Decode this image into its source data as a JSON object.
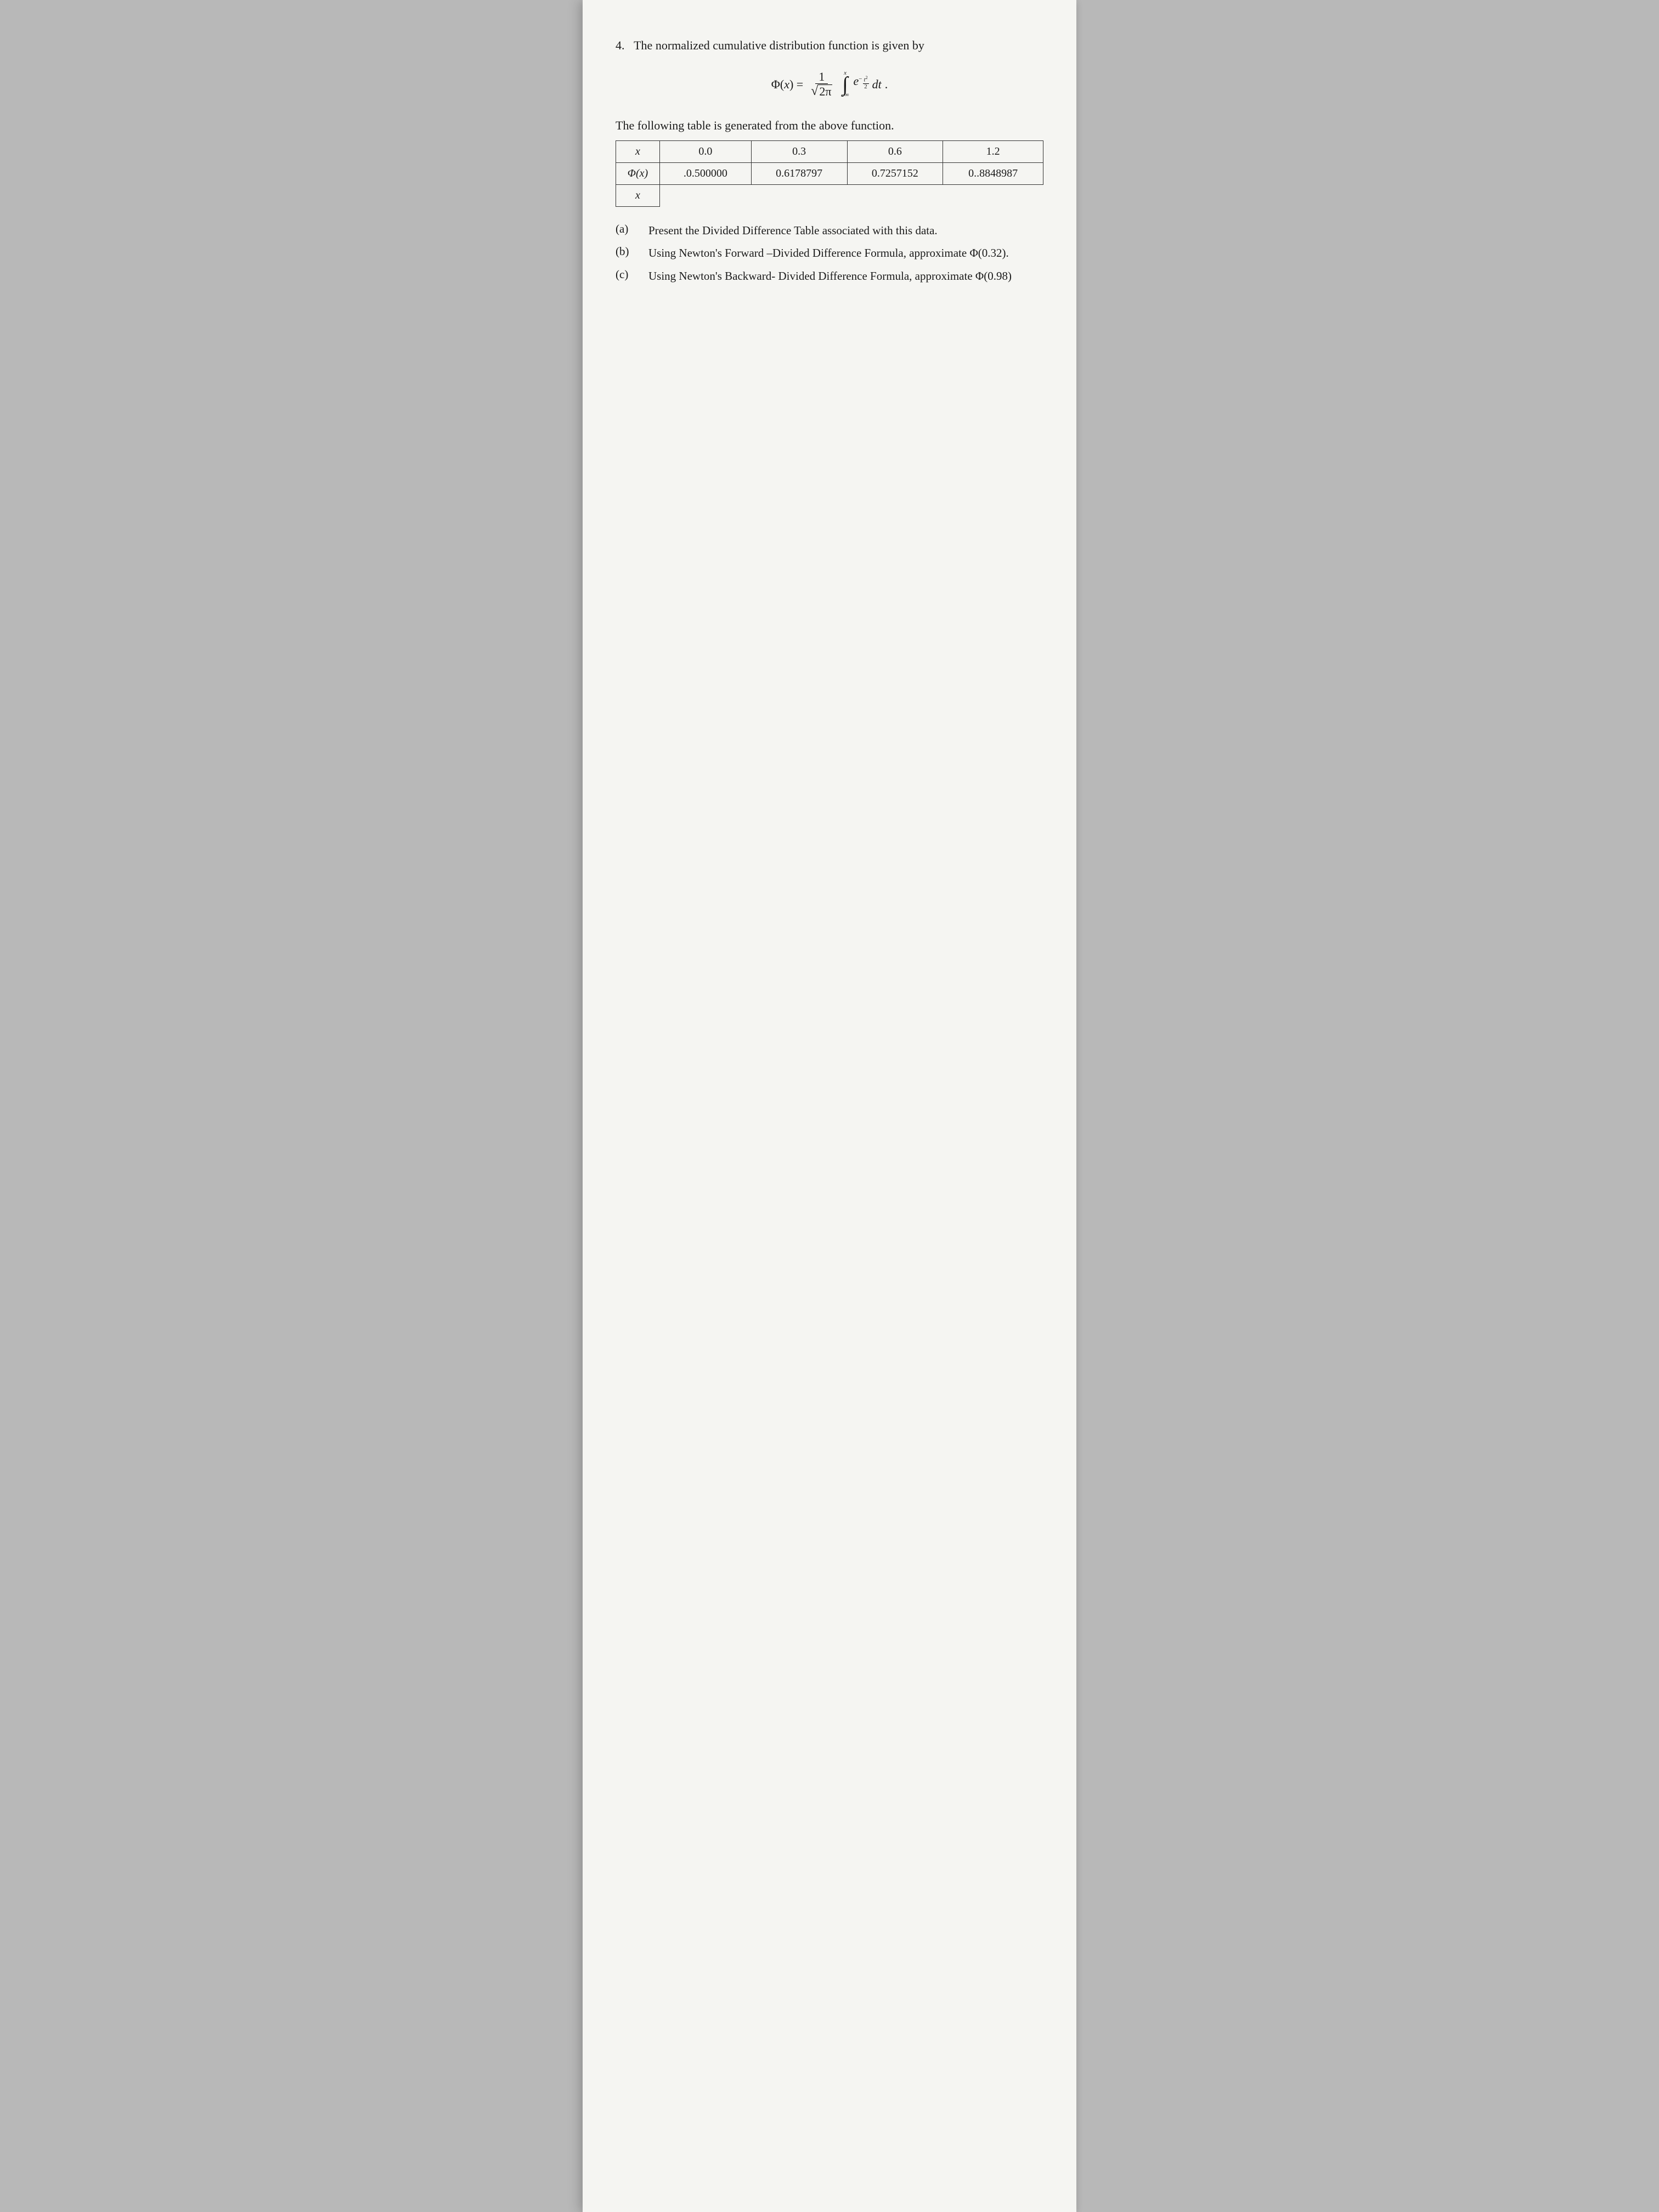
{
  "problem": {
    "number": "4.",
    "heading": "The normalized cumulative distribution function is given by",
    "subtext": "The following table is generated from the above function."
  },
  "formula": {
    "lhs_phi": "Φ(",
    "lhs_var": "x",
    "lhs_close": ") =",
    "frac_num": "1",
    "frac_den_sqrt": "2π",
    "int_upper": "x",
    "int_lower": "−∞",
    "e": "e",
    "exp_neg": "−",
    "exp_num": "t",
    "exp_num_sup": "2",
    "exp_den": "2",
    "dt": "dt",
    "period": "."
  },
  "table": {
    "row1_head": "x",
    "row2_head": "Φ(x)",
    "row3_head": "x",
    "columns": [
      "0.0",
      "0.3",
      "0.6",
      "1.2"
    ],
    "values": [
      ".0.500000",
      "0.6178797",
      "0.7257152",
      "0..8848987"
    ]
  },
  "parts": {
    "a": {
      "label": "(a)",
      "text_prefix": "Present the Divided Difference Table associated with this data."
    },
    "b": {
      "label": "(b)",
      "text_prefix": "Using Newton's Forward –Divided Difference Formula, approximate ",
      "phi": "Φ(0.32)",
      "period": "."
    },
    "c": {
      "label": "(c)",
      "text_prefix": "Using Newton's Backward- Divided Difference Formula, approximate ",
      "phi": "Φ(0.98)"
    }
  },
  "style": {
    "page_bg": "#f5f5f2",
    "outer_bg": "#b8b8b8",
    "text_color": "#1a1a1a",
    "border_color": "#333333",
    "body_fontsize": 22,
    "table_fontsize": 20
  }
}
